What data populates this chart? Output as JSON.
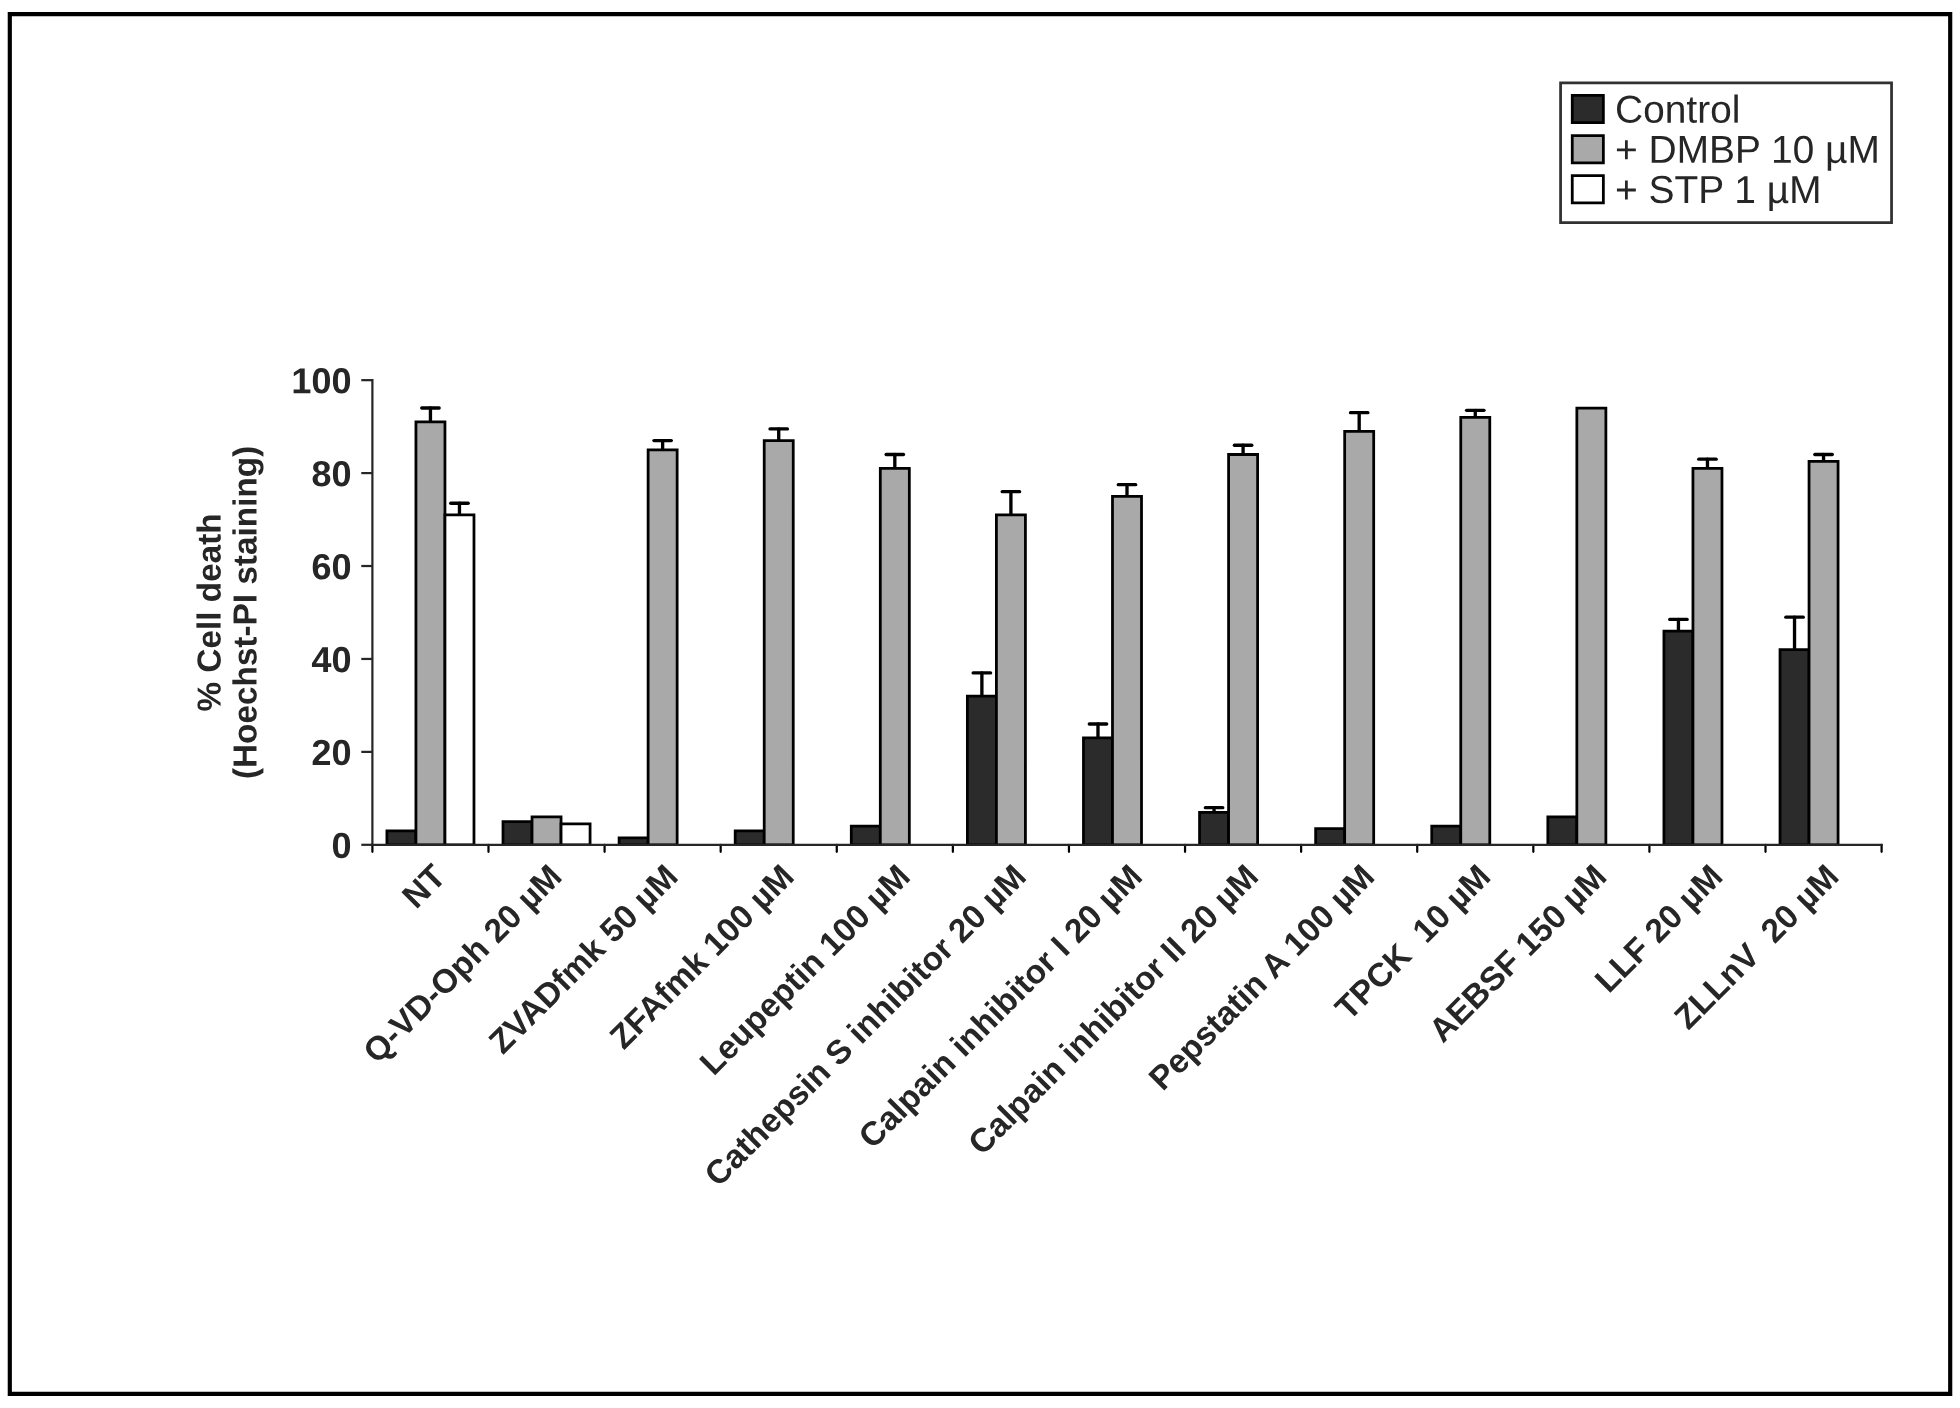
{
  "chart_data": {
    "type": "bar",
    "categories": [
      "NT",
      "Q-VD-Oph 20 µM",
      "ZVADfmk 50 µM",
      "ZFAfmk 100 µM",
      "Leupeptin 100 µM",
      "Cathepsin S inhibitor 20 µM",
      "Calpain inhibitor I 20 µM",
      "Calpain inhibitor II 20 µM",
      "Pepstatin A 100 µM",
      "TPCK  10 µM",
      "AEBSF 150 µM",
      "LLF 20 µM",
      "ZLLnV  20 µM"
    ],
    "ylabel": "% Cell death\n(Hoechst-PI staining)",
    "ylim": [
      0,
      100
    ],
    "yticks": [
      0,
      20,
      40,
      60,
      80,
      100
    ],
    "grid": false,
    "legend": "top right",
    "series": [
      {
        "name": "Control",
        "color": "#2b2b2b",
        "values": [
          3,
          5,
          1.5,
          3,
          4,
          32,
          23,
          7,
          3.5,
          4,
          6,
          46,
          42
        ],
        "errors": [
          null,
          null,
          null,
          null,
          null,
          [
            32,
            37
          ],
          [
            23,
            26
          ],
          [
            7,
            8
          ],
          null,
          null,
          null,
          [
            46,
            48.5
          ],
          [
            42,
            49
          ]
        ]
      },
      {
        "name": "+ DMBP 10 µM",
        "color": "#a9a9a9",
        "values": [
          91,
          6,
          85,
          87,
          81,
          71,
          75,
          84,
          89,
          92,
          94,
          81,
          82.5
        ],
        "errors": [
          [
            91,
            94
          ],
          null,
          [
            85,
            87
          ],
          [
            87,
            89.5
          ],
          [
            81,
            84
          ],
          [
            71,
            76
          ],
          [
            75,
            77.5
          ],
          [
            84,
            86
          ],
          [
            89,
            93
          ],
          [
            92,
            93.5
          ],
          null,
          [
            81,
            83
          ],
          [
            82.5,
            84
          ]
        ]
      },
      {
        "name": "+ STP 1 µM",
        "color": "#ffffff",
        "values": [
          71,
          4.5,
          null,
          null,
          null,
          null,
          null,
          null,
          null,
          null,
          null,
          null,
          null
        ],
        "errors": [
          [
            71,
            73.5
          ],
          null,
          null,
          null,
          null,
          null,
          null,
          null,
          null,
          null,
          null,
          null,
          null
        ]
      }
    ]
  }
}
